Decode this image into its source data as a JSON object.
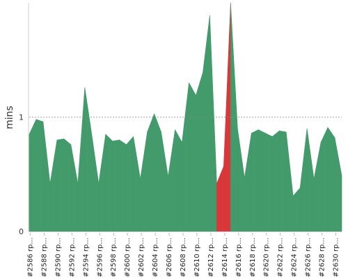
{
  "chart_data": {
    "type": "area",
    "ylabel": "mins",
    "ylim": [
      0,
      2.0
    ],
    "yticks": [
      0,
      1
    ],
    "grid": "dashed line at y=1",
    "colors": {
      "success": "#439a6b",
      "failure": "#d9383a",
      "grid": "#888888"
    },
    "x_tick_labels": [
      "#2586 rp...",
      "#2588 rp...",
      "#2590 rp...",
      "#2592 rp...",
      "#2594 rp...",
      "#2596 rp...",
      "#2598 rp...",
      "#2600 rp...",
      "#2602 rp...",
      "#2604 rp...",
      "#2606 rp...",
      "#2608 rp...",
      "#2610 rp...",
      "#2612 rp...",
      "#2614 rp...",
      "#2616 rp...",
      "#2618 rp...",
      "#2620 rp...",
      "#2622 rp...",
      "#2624 rp...",
      "#2626 rp...",
      "#2628 rp...",
      "#2630 rp..."
    ],
    "x": [
      2586,
      2587,
      2588,
      2589,
      2590,
      2591,
      2592,
      2593,
      2594,
      2595,
      2596,
      2597,
      2598,
      2599,
      2600,
      2601,
      2602,
      2603,
      2604,
      2605,
      2606,
      2607,
      2608,
      2609,
      2610,
      2611,
      2612,
      2613,
      2614,
      2615,
      2616,
      2617,
      2618,
      2619,
      2620,
      2621,
      2622,
      2623,
      2624,
      2625,
      2626,
      2627,
      2628,
      2629,
      2630,
      2631
    ],
    "values": [
      0.85,
      0.98,
      0.96,
      0.42,
      0.8,
      0.81,
      0.76,
      0.42,
      1.26,
      0.85,
      0.42,
      0.85,
      0.79,
      0.8,
      0.76,
      0.83,
      0.46,
      0.87,
      1.03,
      0.87,
      0.48,
      0.89,
      0.78,
      1.3,
      1.19,
      1.39,
      1.89,
      0.42,
      0.57,
      2.0,
      0.9,
      0.47,
      0.86,
      0.89,
      0.86,
      0.83,
      0.88,
      0.87,
      0.31,
      0.38,
      0.9,
      0.46,
      0.78,
      0.91,
      0.82,
      0.49
    ],
    "status": [
      "success",
      "success",
      "success",
      "success",
      "success",
      "success",
      "success",
      "success",
      "success",
      "success",
      "success",
      "success",
      "success",
      "success",
      "success",
      "success",
      "success",
      "success",
      "success",
      "success",
      "success",
      "success",
      "success",
      "success",
      "success",
      "success",
      "success",
      "failure",
      "failure",
      "success",
      "success",
      "success",
      "success",
      "success",
      "success",
      "success",
      "success",
      "success",
      "success",
      "success",
      "success",
      "success",
      "success",
      "success",
      "success",
      "success"
    ]
  }
}
